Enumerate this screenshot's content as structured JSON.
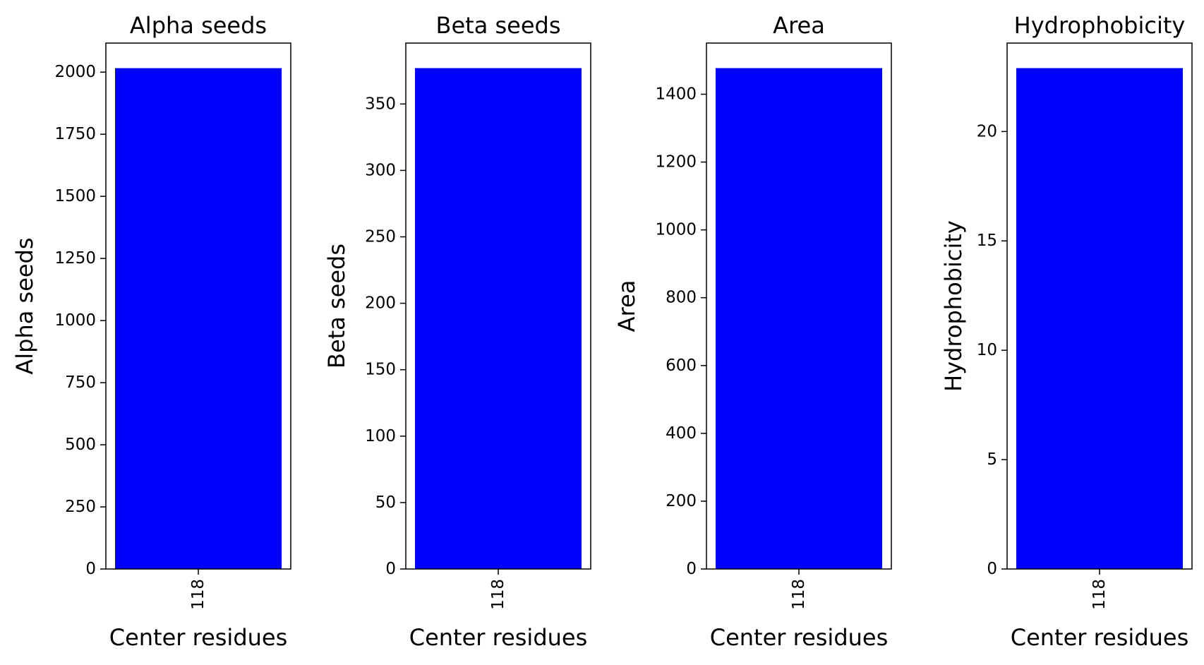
{
  "chart_data": [
    {
      "type": "bar",
      "title": "Alpha seeds",
      "xlabel": "Center residues",
      "ylabel": "Alpha seeds",
      "categories": [
        "118"
      ],
      "values": [
        2016
      ],
      "ylim": [
        0,
        2117
      ],
      "yticks": [
        0,
        250,
        500,
        750,
        1000,
        1250,
        1500,
        1750,
        2000
      ],
      "bar_color": "#0000ff",
      "grid": false
    },
    {
      "type": "bar",
      "title": "Beta seeds",
      "xlabel": "Center residues",
      "ylabel": "Beta seeds",
      "categories": [
        "118"
      ],
      "values": [
        377
      ],
      "ylim": [
        0,
        395.85
      ],
      "yticks": [
        0,
        50,
        100,
        150,
        200,
        250,
        300,
        350
      ],
      "bar_color": "#0000ff",
      "grid": false
    },
    {
      "type": "bar",
      "title": "Area",
      "xlabel": "Center residues",
      "ylabel": "Area",
      "categories": [
        "118"
      ],
      "values": [
        1477
      ],
      "ylim": [
        0,
        1550.85
      ],
      "yticks": [
        0,
        200,
        400,
        600,
        800,
        1000,
        1200,
        1400
      ],
      "bar_color": "#0000ff",
      "grid": false
    },
    {
      "type": "bar",
      "title": "Hydrophobicity",
      "xlabel": "Center residues",
      "ylabel": "Hydrophobicity",
      "categories": [
        "118"
      ],
      "values": [
        22.9
      ],
      "ylim": [
        0,
        24.045
      ],
      "yticks": [
        0,
        5,
        10,
        15,
        20
      ],
      "bar_color": "#0000ff",
      "grid": false
    }
  ]
}
